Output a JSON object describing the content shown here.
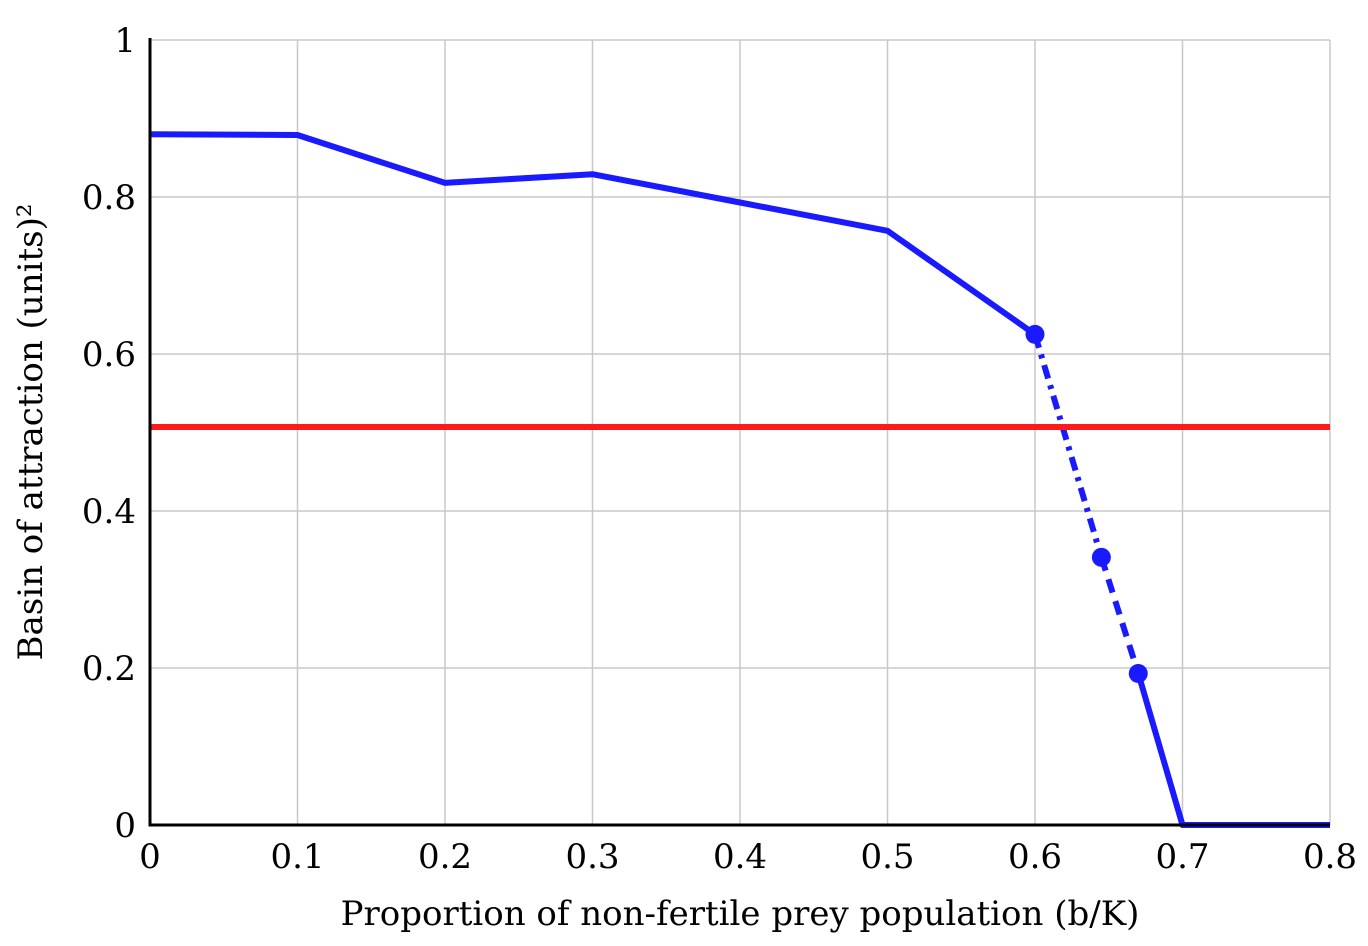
{
  "chart_data": {
    "type": "line",
    "title": "",
    "xlabel": "Proportion of non-fertile prey population (b/K)",
    "ylabel": "Basin of attraction (units)²",
    "xlim": [
      0,
      0.8
    ],
    "ylim": [
      0,
      1
    ],
    "grid": true,
    "x_ticks": [
      {
        "v": 0,
        "label": "0"
      },
      {
        "v": 0.1,
        "label": "0.1"
      },
      {
        "v": 0.2,
        "label": "0.2"
      },
      {
        "v": 0.3,
        "label": "0.3"
      },
      {
        "v": 0.4,
        "label": "0.4"
      },
      {
        "v": 0.5,
        "label": "0.5"
      },
      {
        "v": 0.6,
        "label": "0.6"
      },
      {
        "v": 0.7,
        "label": "0.7"
      },
      {
        "v": 0.8,
        "label": "0.8"
      }
    ],
    "y_ticks": [
      {
        "v": 0,
        "label": "0"
      },
      {
        "v": 0.2,
        "label": "0.2"
      },
      {
        "v": 0.4,
        "label": "0.4"
      },
      {
        "v": 0.6,
        "label": "0.6"
      },
      {
        "v": 0.8,
        "label": "0.8"
      },
      {
        "v": 1,
        "label": "1"
      }
    ],
    "series": [
      {
        "name": "basin-solid-upper",
        "style": "solid",
        "color": "#1a1aff",
        "x": [
          0,
          0.1,
          0.2,
          0.3,
          0.4,
          0.5,
          0.6
        ],
        "y": [
          0.88,
          0.879,
          0.818,
          0.829,
          0.793,
          0.757,
          0.625
        ]
      },
      {
        "name": "basin-dashdot",
        "style": "dashdot",
        "color": "#1a1aff",
        "x": [
          0.6,
          0.645
        ],
        "y": [
          0.625,
          0.341
        ]
      },
      {
        "name": "basin-dashed",
        "style": "dashed",
        "color": "#1a1aff",
        "x": [
          0.645,
          0.67
        ],
        "y": [
          0.341,
          0.193
        ]
      },
      {
        "name": "basin-solid-lower",
        "style": "solid",
        "color": "#1a1aff",
        "x": [
          0.67,
          0.7,
          0.8
        ],
        "y": [
          0.193,
          0,
          0
        ]
      },
      {
        "name": "threshold",
        "style": "solid",
        "color": "#ff1a1a",
        "x": [
          0,
          0.8
        ],
        "y": [
          0.507,
          0.507
        ]
      }
    ],
    "markers": {
      "color": "#1a1aff",
      "x": [
        0.6,
        0.645,
        0.67
      ],
      "y": [
        0.625,
        0.341,
        0.193
      ]
    }
  }
}
